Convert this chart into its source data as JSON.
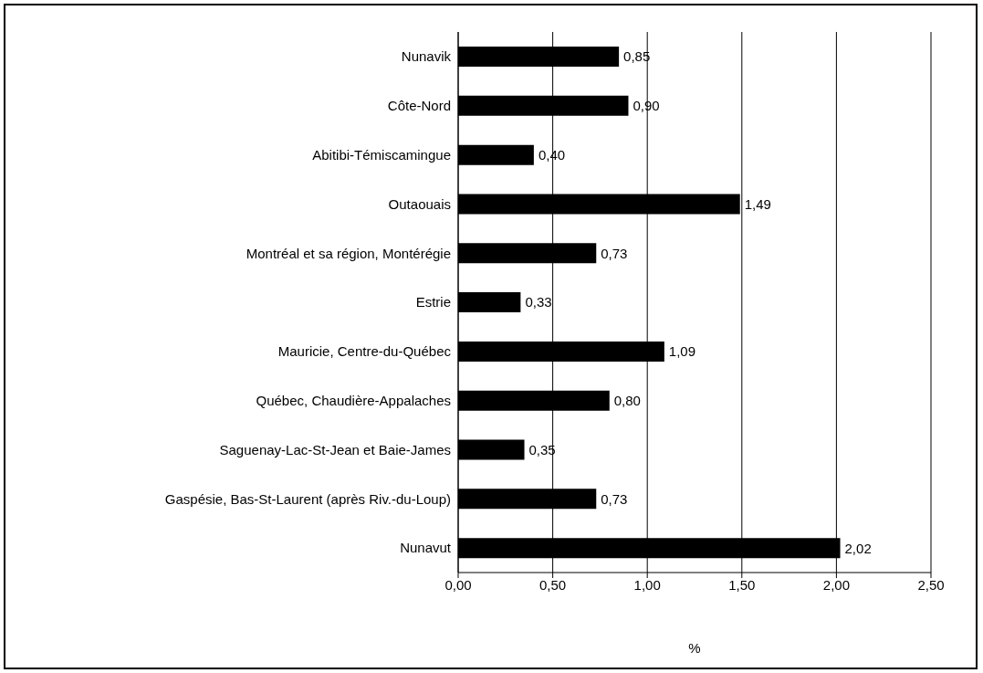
{
  "chart_data": {
    "type": "bar",
    "orientation": "horizontal",
    "xlabel": "%",
    "categories": [
      "Nunavik",
      "Côte-Nord",
      "Abitibi-Témiscamingue",
      "Outaouais",
      "Montréal et sa région, Montérégie",
      "Estrie",
      "Mauricie, Centre-du-Québec",
      "Québec, Chaudière-Appalaches",
      "Saguenay-Lac-St-Jean et Baie-James",
      "Gaspésie, Bas-St-Laurent (après Riv.-du-Loup)",
      "Nunavut"
    ],
    "values": [
      0.85,
      0.9,
      0.4,
      1.49,
      0.73,
      0.33,
      1.09,
      0.8,
      0.35,
      0.73,
      2.02
    ],
    "value_labels": [
      "0,85",
      "0,90",
      "0,40",
      "1,49",
      "0,73",
      "0,33",
      "1,09",
      "0,80",
      "0,35",
      "0,73",
      "2,02"
    ],
    "color": "#000000",
    "xlim": [
      0,
      2.5
    ],
    "xticks": [
      {
        "value": 0,
        "label": "0,00"
      },
      {
        "value": 0.5,
        "label": "0,50"
      },
      {
        "value": 1,
        "label": "1,00"
      },
      {
        "value": 1.5,
        "label": "1,50"
      },
      {
        "value": 2,
        "label": "2,00"
      },
      {
        "value": 2.5,
        "label": "2,50"
      }
    ],
    "grid": "x",
    "legend": false
  }
}
